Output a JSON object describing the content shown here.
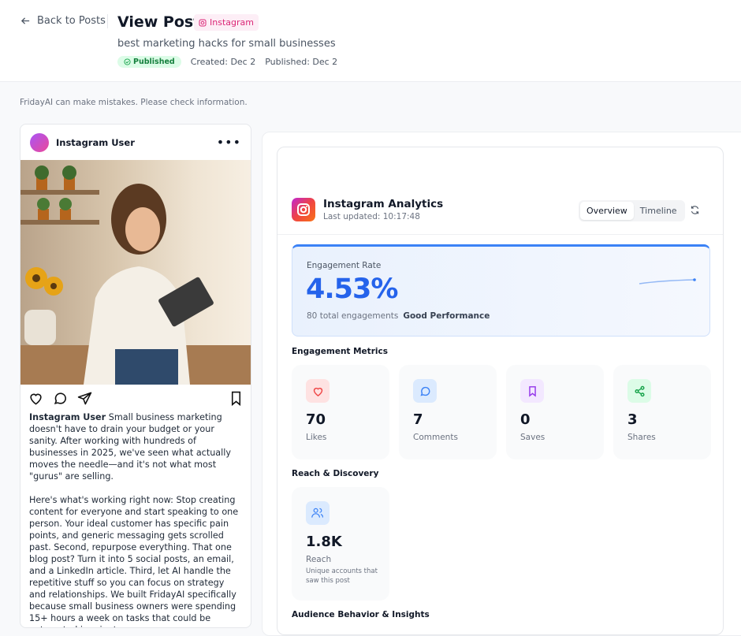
{
  "header": {
    "back_label": "Back to Posts",
    "title": "View Post",
    "platform_badge": "Instagram",
    "subtitle": "best marketing hacks for small businesses",
    "status": "Published",
    "created": "Created: Dec 2",
    "published": "Published: Dec 2"
  },
  "disclaimer": "FridayAI can make mistakes. Please check information.",
  "post": {
    "username": "Instagram User",
    "caption_user": "Instagram User",
    "caption": " Small business marketing doesn't have to drain your budget or your sanity. After working with hundreds of businesses in 2025, we've seen what actually moves the needle—and it's not what most \"gurus\" are selling.\n\nHere's what's working right now: Stop creating content for everyone and start speaking to one person. Your ideal customer has specific pain points, and generic messaging gets scrolled past. Second, repurpose everything. That one blog post? Turn it into 5 social posts, an email, and a LinkedIn article. Third, let AI handle the repetitive stuff so you can focus on strategy and relationships. We built FridayAI specifically because small business owners were spending 15+ hours a week on tasks that could be automated in minutes."
  },
  "analytics": {
    "title": "Instagram Analytics",
    "last_updated": "Last updated: 10:17:48",
    "tabs": [
      {
        "label": "Overview",
        "active": true
      },
      {
        "label": "Timeline",
        "active": false
      }
    ],
    "engagement_rate": {
      "label": "Engagement Rate",
      "value": "4.53%",
      "total": "80 total engagements",
      "performance": "Good Performance"
    },
    "sections": {
      "engagement": "Engagement Metrics",
      "reach": "Reach & Discovery",
      "audience": "Audience Behavior & Insights"
    },
    "metrics": [
      {
        "value": "70",
        "label": "Likes",
        "icon": "heart-icon",
        "color": "#ef4444",
        "bg": "#fee2e2"
      },
      {
        "value": "7",
        "label": "Comments",
        "icon": "comment-icon",
        "color": "#3b82f6",
        "bg": "#dbeafe"
      },
      {
        "value": "0",
        "label": "Saves",
        "icon": "bookmark-icon",
        "color": "#9333ea",
        "bg": "#f3e8ff"
      },
      {
        "value": "3",
        "label": "Shares",
        "icon": "share-icon",
        "color": "#16a34a",
        "bg": "#dcfce7"
      }
    ],
    "reach": {
      "value": "1.8K",
      "label": "Reach",
      "description": "Unique accounts that saw this post",
      "icon": "users-icon"
    }
  }
}
